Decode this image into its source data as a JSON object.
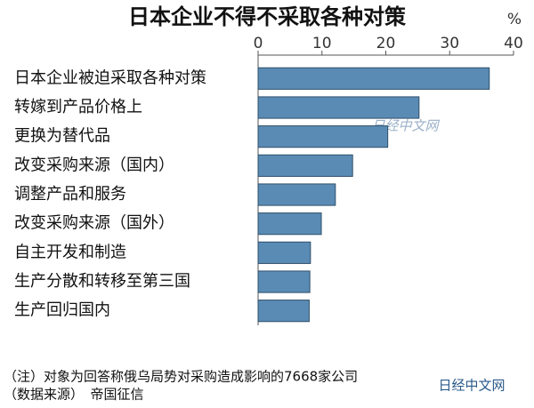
{
  "chart_data": {
    "type": "bar",
    "orientation": "horizontal",
    "title": "日本企业不得不采取各种对策",
    "unit": "%",
    "categories": [
      "日本企业被迫采取各种对策",
      "转嫁到产品价格上",
      "更换为替代品",
      "改变采购来源（国内）",
      "调整产品和服务",
      "改变采购来源（国外）",
      "自主开发和制造",
      "生产分散和转移至第三国",
      "生产回归国内"
    ],
    "values": [
      36.2,
      25.2,
      20.3,
      14.8,
      12.1,
      9.9,
      8.2,
      8.1,
      8.0
    ],
    "color": "#5a8bb5",
    "xlim": [
      0,
      40
    ],
    "xticks": [
      0,
      10,
      20,
      30,
      40
    ],
    "notes": [
      "（注）对象为回答称俄乌局势对采购造成影响的7668家公司",
      "（数据来源）　帝国征信"
    ],
    "watermark": "日经中文网"
  }
}
